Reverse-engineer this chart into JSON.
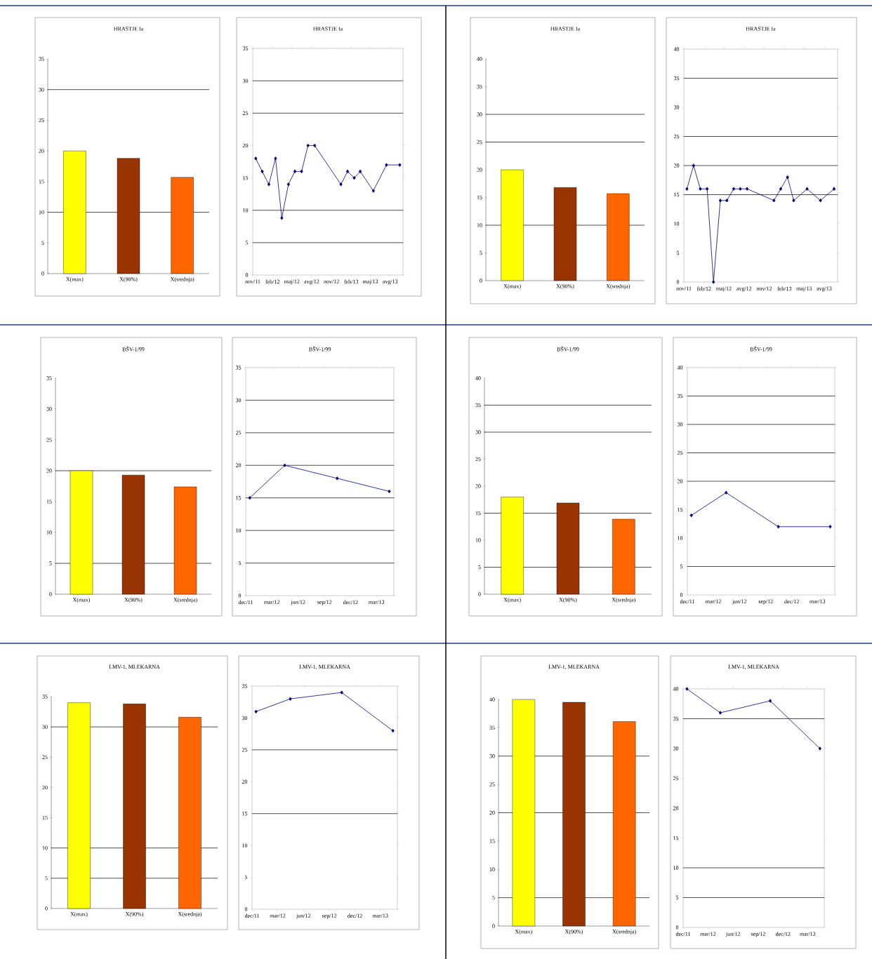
{
  "chart_data": [
    {
      "type": "bar",
      "title": "HRASTJE Ia",
      "categories": [
        "X(max)",
        "X(90%)",
        "X(srednja)"
      ],
      "values": [
        20,
        18.8,
        15.7
      ],
      "colors": [
        "#ffff00",
        "#993300",
        "#ff6600"
      ],
      "ylim": [
        0,
        35
      ],
      "yticks": [
        0,
        5,
        10,
        15,
        20,
        25,
        30,
        35
      ],
      "ref_lines": [
        {
          "axis": "y",
          "value": 30
        },
        {
          "axis": "y",
          "value": 10
        }
      ]
    },
    {
      "type": "line",
      "title": "HRASTJE Ia",
      "x": [
        "2011-11-15",
        "2011-12-15",
        "2012-01-15",
        "2012-02-15",
        "2012-03-15",
        "2012-04-15",
        "2012-05-15",
        "2012-06-15",
        "2012-07-15",
        "2012-08-15",
        "2012-12-15",
        "2013-01-15",
        "2013-02-15",
        "2013-03-15",
        "2013-05-15",
        "2013-07-15",
        "2013-09-15"
      ],
      "values": [
        18,
        16,
        14,
        18,
        8.8,
        14,
        16,
        16,
        20,
        20,
        14,
        16,
        15,
        16,
        13,
        17,
        17
      ],
      "color": "#000080",
      "marker": "diamond",
      "xlim": [
        "2011-11-01",
        "2013-09-30"
      ],
      "xticks": [
        {
          "value": "2011-11",
          "label": "nov/11"
        },
        {
          "value": "2012-02",
          "label": "feb/12"
        },
        {
          "value": "2012-05",
          "label": "maj/12"
        },
        {
          "value": "2012-08",
          "label": "avg/12"
        },
        {
          "value": "2012-11",
          "label": "nov/12"
        },
        {
          "value": "2013-02",
          "label": "feb/13"
        },
        {
          "value": "2013-05",
          "label": "maj/13"
        },
        {
          "value": "2013-08",
          "label": "avg/13"
        }
      ],
      "ylim": [
        0,
        35
      ],
      "yticks": [
        0,
        5,
        10,
        15,
        20,
        25,
        30,
        35
      ],
      "ref_lines": [
        {
          "axis": "y",
          "value": 30
        },
        {
          "axis": "y",
          "value": 25
        },
        {
          "axis": "y",
          "value": 10
        },
        {
          "axis": "y",
          "value": 5
        }
      ]
    },
    {
      "type": "bar",
      "title": "HRASTJE Ia",
      "categories": [
        "X(max)",
        "X(90%)",
        "X(srednja)"
      ],
      "values": [
        20,
        16.8,
        15.7
      ],
      "colors": [
        "#ffff00",
        "#993300",
        "#ff6600"
      ],
      "ylim": [
        0,
        40
      ],
      "yticks": [
        0,
        5,
        10,
        15,
        20,
        25,
        30,
        35,
        40
      ],
      "ref_lines": [
        {
          "axis": "y",
          "value": 30
        },
        {
          "axis": "y",
          "value": 25
        },
        {
          "axis": "y",
          "value": 10
        }
      ]
    },
    {
      "type": "line",
      "title": "HRASTJE Ia",
      "x": [
        "2011-11-15",
        "2011-12-15",
        "2012-01-15",
        "2012-02-15",
        "2012-03-15",
        "2012-04-15",
        "2012-05-15",
        "2012-06-15",
        "2012-07-15",
        "2012-08-15",
        "2012-12-15",
        "2013-01-15",
        "2013-02-15",
        "2013-03-15",
        "2013-05-15",
        "2013-07-15",
        "2013-09-15"
      ],
      "values": [
        16,
        20,
        16,
        16,
        0,
        14,
        14,
        16,
        16,
        16,
        14,
        16,
        18,
        14,
        16,
        14,
        16
      ],
      "color": "#000080",
      "marker": "diamond",
      "xlim": [
        "2011-11-01",
        "2013-10-01"
      ],
      "xticks": [
        {
          "value": "2011-11",
          "label": "nov/11"
        },
        {
          "value": "2012-02",
          "label": "feb/12"
        },
        {
          "value": "2012-05",
          "label": "maj/12"
        },
        {
          "value": "2012-08",
          "label": "avg/12"
        },
        {
          "value": "2012-11",
          "label": "nov/12"
        },
        {
          "value": "2013-02",
          "label": "feb/13"
        },
        {
          "value": "2013-05",
          "label": "maj/13"
        },
        {
          "value": "2013-08",
          "label": "avg/13"
        }
      ],
      "ylim": [
        0,
        40
      ],
      "yticks": [
        0,
        5,
        10,
        15,
        20,
        25,
        30,
        35,
        40
      ],
      "ref_lines": [
        {
          "axis": "y",
          "value": 35
        },
        {
          "axis": "y",
          "value": 25
        },
        {
          "axis": "y",
          "value": 20
        },
        {
          "axis": "y",
          "value": 15
        }
      ]
    },
    {
      "type": "bar",
      "title": "BŠV-1/99",
      "categories": [
        "X(max)",
        "X(90%)",
        "X(srednja)"
      ],
      "values": [
        20,
        19.3,
        17.4
      ],
      "colors": [
        "#ffff00",
        "#993300",
        "#ff6600"
      ],
      "ylim": [
        0,
        35
      ],
      "yticks": [
        0,
        5,
        10,
        15,
        20,
        25,
        30,
        35
      ],
      "ref_lines": [
        {
          "axis": "y",
          "value": 20
        },
        {
          "axis": "y",
          "value": 5
        }
      ]
    },
    {
      "type": "line",
      "title": "BŠV-1/99",
      "x": [
        "2011-12-15",
        "2012-04-15",
        "2012-10-15",
        "2013-04-15"
      ],
      "values": [
        15,
        20,
        18,
        16
      ],
      "color": "#000080",
      "marker": "diamond",
      "xlim": [
        "2011-12-01",
        "2013-05-01"
      ],
      "xticks": [
        {
          "value": "2011-12",
          "label": "dec/11"
        },
        {
          "value": "2012-03",
          "label": "mar/12"
        },
        {
          "value": "2012-06",
          "label": "jun/12"
        },
        {
          "value": "2012-09",
          "label": "sep/12"
        },
        {
          "value": "2012-12",
          "label": "dec/12"
        },
        {
          "value": "2013-03",
          "label": "mar/13"
        }
      ],
      "ylim": [
        0,
        35
      ],
      "yticks": [
        0,
        5,
        10,
        15,
        20,
        25,
        30,
        35
      ],
      "ref_lines": [
        {
          "axis": "y",
          "value": 30
        },
        {
          "axis": "y",
          "value": 25
        },
        {
          "axis": "y",
          "value": 20
        },
        {
          "axis": "y",
          "value": 15
        },
        {
          "axis": "y",
          "value": 10
        },
        {
          "axis": "y",
          "value": 5
        }
      ]
    },
    {
      "type": "bar",
      "title": "BŠV-1/99",
      "categories": [
        "X(max)",
        "X(90%)",
        "X(srednja)"
      ],
      "values": [
        18,
        16.9,
        13.9
      ],
      "colors": [
        "#ffff00",
        "#993300",
        "#ff6600"
      ],
      "ylim": [
        0,
        40
      ],
      "yticks": [
        0,
        5,
        10,
        15,
        20,
        25,
        30,
        35,
        40
      ],
      "ref_lines": [
        {
          "axis": "y",
          "value": 35
        },
        {
          "axis": "y",
          "value": 30
        },
        {
          "axis": "y",
          "value": 15
        },
        {
          "axis": "y",
          "value": 5
        }
      ]
    },
    {
      "type": "line",
      "title": "BŠV-1/99",
      "x": [
        "2011-12-15",
        "2012-04-15",
        "2012-10-15",
        "2013-04-15"
      ],
      "values": [
        14,
        18,
        12,
        12
      ],
      "color": "#000080",
      "marker": "diamond",
      "xlim": [
        "2011-12-01",
        "2013-05-01"
      ],
      "xticks": [
        {
          "value": "2011-12",
          "label": "dec/11"
        },
        {
          "value": "2012-03",
          "label": "mar/12"
        },
        {
          "value": "2012-06",
          "label": "jun/12"
        },
        {
          "value": "2012-09",
          "label": "sep/12"
        },
        {
          "value": "2012-12",
          "label": "dec/12"
        },
        {
          "value": "2013-03",
          "label": "mar/13"
        }
      ],
      "ylim": [
        0,
        40
      ],
      "yticks": [
        0,
        5,
        10,
        15,
        20,
        25,
        30,
        35,
        40
      ],
      "ref_lines": [
        {
          "axis": "y",
          "value": 35
        },
        {
          "axis": "y",
          "value": 30
        },
        {
          "axis": "y",
          "value": 25
        },
        {
          "axis": "y",
          "value": 20
        },
        {
          "axis": "y",
          "value": 5
        }
      ]
    },
    {
      "type": "bar",
      "title": "LMV-1, MLEKARNA",
      "categories": [
        "X(max)",
        "X(90%)",
        "X(srednja)"
      ],
      "values": [
        34,
        33.8,
        31.6
      ],
      "colors": [
        "#ffff00",
        "#993300",
        "#ff6600"
      ],
      "ylim": [
        0,
        35
      ],
      "yticks": [
        0,
        5,
        10,
        15,
        20,
        25,
        30,
        35
      ],
      "ref_lines": [
        {
          "axis": "y",
          "value": 30
        },
        {
          "axis": "y",
          "value": 10
        },
        {
          "axis": "y",
          "value": 5
        }
      ]
    },
    {
      "type": "line",
      "title": "LMV-1, MLEKARNA",
      "x": [
        "2011-12-15",
        "2012-04-15",
        "2012-10-15",
        "2013-04-15"
      ],
      "values": [
        31,
        33,
        34,
        28
      ],
      "color": "#000080",
      "marker": "diamond",
      "xlim": [
        "2011-12-01",
        "2013-05-01"
      ],
      "xticks": [
        {
          "value": "2011-12",
          "label": "dec/11"
        },
        {
          "value": "2012-03",
          "label": "mar/12"
        },
        {
          "value": "2012-06",
          "label": "jun/12"
        },
        {
          "value": "2012-09",
          "label": "sep/12"
        },
        {
          "value": "2012-12",
          "label": "dec/12"
        },
        {
          "value": "2013-03",
          "label": "mar/13"
        }
      ],
      "ylim": [
        0,
        35
      ],
      "yticks": [
        0,
        5,
        10,
        15,
        20,
        25,
        30,
        35
      ],
      "ref_lines": [
        {
          "axis": "y",
          "value": 25
        },
        {
          "axis": "y",
          "value": 15
        }
      ]
    },
    {
      "type": "bar",
      "title": "LMV-1, MLEKARNA",
      "categories": [
        "X(max)",
        "X(90%)",
        "X(srednja)"
      ],
      "values": [
        40,
        39.5,
        36.1
      ],
      "colors": [
        "#ffff00",
        "#993300",
        "#ff6600"
      ],
      "ylim": [
        0,
        40
      ],
      "yticks": [
        0,
        5,
        10,
        15,
        20,
        25,
        30,
        35,
        40
      ],
      "ref_lines": [
        {
          "axis": "y",
          "value": 30
        },
        {
          "axis": "y",
          "value": 20
        },
        {
          "axis": "y",
          "value": 5
        }
      ]
    },
    {
      "type": "line",
      "title": "LMV-1, MLEKARNA",
      "x": [
        "2011-12-15",
        "2012-04-15",
        "2012-10-15",
        "2013-04-15"
      ],
      "values": [
        40,
        36,
        38,
        30
      ],
      "color": "#000080",
      "marker": "diamond",
      "xlim": [
        "2011-12-01",
        "2013-05-01"
      ],
      "xticks": [
        {
          "value": "2011-12",
          "label": "dec/11"
        },
        {
          "value": "2012-03",
          "label": "mar/12"
        },
        {
          "value": "2012-06",
          "label": "jun/12"
        },
        {
          "value": "2012-09",
          "label": "sep/12"
        },
        {
          "value": "2012-12",
          "label": "dec/12"
        },
        {
          "value": "2013-03",
          "label": "mar/13"
        }
      ],
      "ylim": [
        0,
        40
      ],
      "yticks": [
        0,
        5,
        10,
        15,
        20,
        25,
        30,
        35,
        40
      ],
      "ref_lines": [
        {
          "axis": "y",
          "value": 35
        },
        {
          "axis": "y",
          "value": 10
        },
        {
          "axis": "y",
          "value": 5
        }
      ]
    }
  ]
}
